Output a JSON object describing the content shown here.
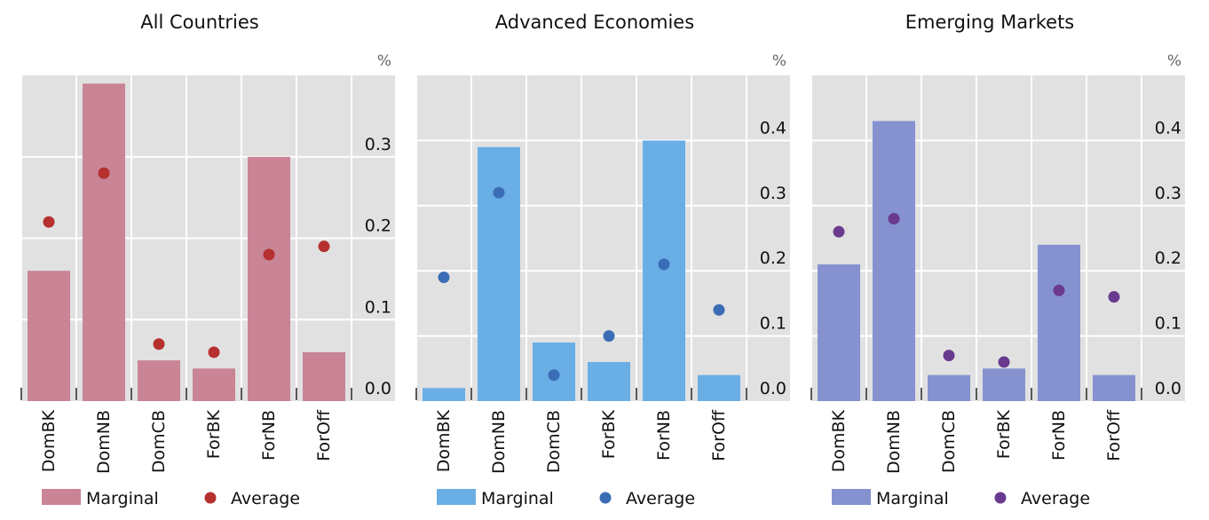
{
  "chart_data": [
    {
      "type": "bar",
      "title": "All Countries",
      "unit_label": "%",
      "categories": [
        "DomBK",
        "DomNB",
        "DomCB",
        "ForBK",
        "ForNB",
        "ForOff"
      ],
      "series": [
        {
          "name": "Marginal",
          "kind": "bar",
          "values": [
            0.16,
            0.39,
            0.05,
            0.04,
            0.3,
            0.06
          ]
        },
        {
          "name": "Average",
          "kind": "dot",
          "values": [
            0.22,
            0.28,
            0.07,
            0.06,
            0.18,
            0.19
          ]
        }
      ],
      "yticks": [
        "0.0",
        "0.1",
        "0.2",
        "0.3"
      ],
      "ytick_values": [
        0,
        0.1,
        0.2,
        0.3
      ],
      "ylim": [
        0,
        0.4
      ],
      "colors": {
        "bar": "#c98496",
        "dot": "#b5302e"
      },
      "legend_position": "bottom-left",
      "grid": true
    },
    {
      "type": "bar",
      "title": "Advanced Economies",
      "unit_label": "%",
      "categories": [
        "DomBK",
        "DomNB",
        "DomCB",
        "ForBK",
        "ForNB",
        "ForOff"
      ],
      "series": [
        {
          "name": "Marginal",
          "kind": "bar",
          "values": [
            0.02,
            0.39,
            0.09,
            0.06,
            0.4,
            0.04
          ]
        },
        {
          "name": "Average",
          "kind": "dot",
          "values": [
            0.19,
            0.32,
            0.04,
            0.1,
            0.21,
            0.14
          ]
        }
      ],
      "yticks": [
        "0.0",
        "0.1",
        "0.2",
        "0.3",
        "0.4"
      ],
      "ytick_values": [
        0,
        0.1,
        0.2,
        0.3,
        0.4
      ],
      "ylim": [
        0,
        0.5
      ],
      "colors": {
        "bar": "#6aaee6",
        "dot": "#3a6db5"
      },
      "legend_position": "bottom-left",
      "grid": true
    },
    {
      "type": "bar",
      "title": "Emerging Markets",
      "unit_label": "%",
      "categories": [
        "DomBK",
        "DomNB",
        "DomCB",
        "ForBK",
        "ForNB",
        "ForOff"
      ],
      "series": [
        {
          "name": "Marginal",
          "kind": "bar",
          "values": [
            0.21,
            0.43,
            0.04,
            0.05,
            0.24,
            0.04
          ]
        },
        {
          "name": "Average",
          "kind": "dot",
          "values": [
            0.26,
            0.28,
            0.07,
            0.06,
            0.17,
            0.16
          ]
        }
      ],
      "yticks": [
        "0.0",
        "0.1",
        "0.2",
        "0.3",
        "0.4"
      ],
      "ytick_values": [
        0,
        0.1,
        0.2,
        0.3,
        0.4
      ],
      "ylim": [
        0,
        0.5
      ],
      "colors": {
        "bar": "#8592cf",
        "dot": "#6a3a8f"
      },
      "legend_position": "bottom-left",
      "grid": true
    }
  ]
}
